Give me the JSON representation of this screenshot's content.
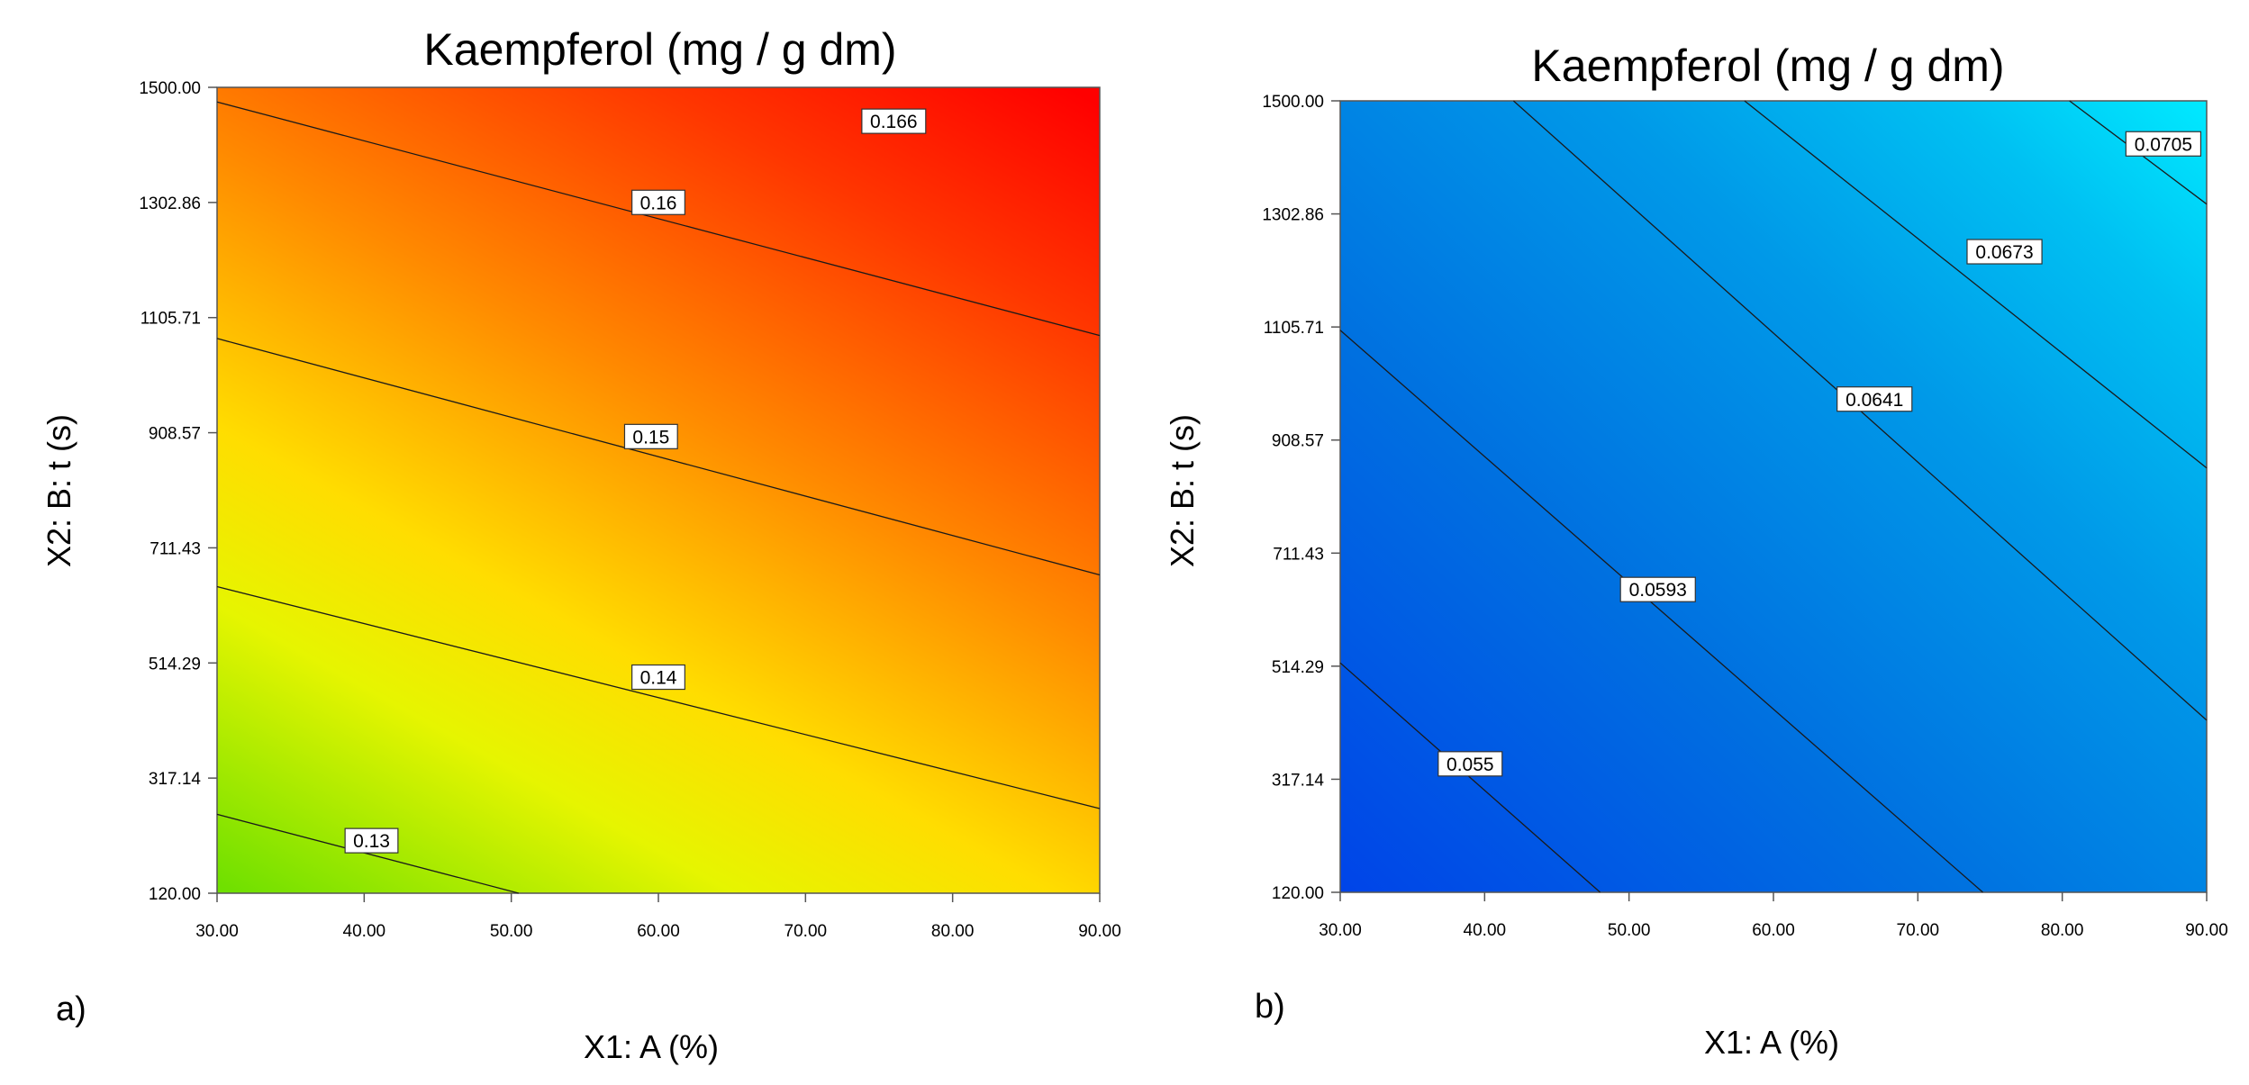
{
  "chart_data": [
    {
      "type": "contour",
      "panel_label": "a)",
      "title": "Kaempferol (mg / g dm)",
      "xlabel": "X1:  A (%)",
      "ylabel": "X2: B: t (s)",
      "xlim": [
        30,
        90
      ],
      "ylim": [
        120,
        1500
      ],
      "x_ticks": [
        "30.00",
        "40.00",
        "50.00",
        "60.00",
        "70.00",
        "80.00",
        "90.00"
      ],
      "y_ticks": [
        "120.00",
        "317.14",
        "514.29",
        "711.43",
        "908.57",
        "1105.71",
        "1302.86",
        "1500.00"
      ],
      "colormap": [
        "#80e600",
        "#ffff00",
        "#ff8800",
        "#ff0000"
      ],
      "contours": [
        {
          "label": "0.13",
          "points": [
            [
              30,
              255
            ],
            [
              50.5,
              120
            ]
          ],
          "label_at": [
            40.5,
            210
          ]
        },
        {
          "label": "0.14",
          "points": [
            [
              30,
              645
            ],
            [
              90,
              265
            ]
          ],
          "label_at": [
            60,
            490
          ]
        },
        {
          "label": "0.15",
          "points": [
            [
              30,
              1070
            ],
            [
              90,
              665
            ]
          ],
          "label_at": [
            59.5,
            902
          ]
        },
        {
          "label": "0.16",
          "points": [
            [
              30,
              1475
            ],
            [
              90,
              1075
            ]
          ],
          "label_at": [
            60,
            1303
          ]
        },
        {
          "label": "0.166",
          "points": [],
          "label_at": [
            76,
            1442
          ]
        }
      ]
    },
    {
      "type": "contour",
      "panel_label": "b)",
      "title": "Kaempferol (mg / g dm)",
      "xlabel": "X1:  A (%)",
      "ylabel": "X2: B: t (s)",
      "xlim": [
        30,
        90
      ],
      "ylim": [
        120,
        1500
      ],
      "x_ticks": [
        "30.00",
        "40.00",
        "50.00",
        "60.00",
        "70.00",
        "80.00",
        "90.00"
      ],
      "y_ticks": [
        "120.00",
        "317.14",
        "514.29",
        "711.43",
        "908.57",
        "1105.71",
        "1302.86",
        "1500.00"
      ],
      "colormap": [
        "#0055ee",
        "#0088e0",
        "#00c6f2",
        "#00e6ff"
      ],
      "contours": [
        {
          "label": "0.055",
          "points": [
            [
              30,
              520
            ],
            [
              48,
              120
            ]
          ],
          "label_at": [
            39,
            344
          ]
        },
        {
          "label": "0.0593",
          "points": [
            [
              30,
              1100
            ],
            [
              74.5,
              120
            ]
          ],
          "label_at": [
            52,
            648
          ]
        },
        {
          "label": "0.0641",
          "points": [
            [
              42,
              1500
            ],
            [
              90,
              420
            ]
          ],
          "label_at": [
            67,
            980
          ]
        },
        {
          "label": "0.0673",
          "points": [
            [
              58,
              1500
            ],
            [
              90,
              860
            ]
          ],
          "label_at": [
            76,
            1237
          ]
        },
        {
          "label": "0.0705",
          "points": [
            [
              80.5,
              1500
            ],
            [
              90,
              1320
            ]
          ],
          "label_at": [
            87,
            1425
          ]
        }
      ]
    }
  ]
}
